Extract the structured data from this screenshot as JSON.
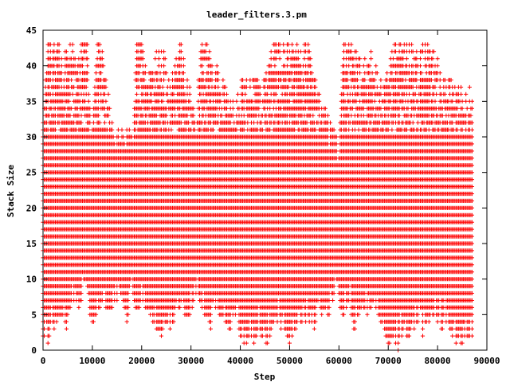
{
  "chart_data": {
    "type": "scatter",
    "title": "leader_filters.3.pm",
    "xlabel": "Step",
    "ylabel": "Stack Size",
    "xlim": [
      0,
      90000
    ],
    "ylim": [
      0,
      45
    ],
    "x_ticks": [
      0,
      10000,
      20000,
      30000,
      40000,
      50000,
      60000,
      70000,
      80000,
      90000
    ],
    "y_ticks": [
      0,
      5,
      10,
      15,
      20,
      25,
      30,
      35,
      40,
      45
    ],
    "grid": false,
    "legend": "none",
    "marker": "+",
    "color": "#ff0000",
    "x_extent": [
      0,
      87000
    ],
    "series": [
      {
        "min_envelope": [
          [
            0,
            2
          ],
          [
            1000,
            1
          ],
          [
            2000,
            3
          ],
          [
            4000,
            5
          ],
          [
            5000,
            2
          ],
          [
            6000,
            8
          ],
          [
            7000,
            5
          ],
          [
            8000,
            8
          ],
          [
            9000,
            6
          ],
          [
            10000,
            4
          ],
          [
            11000,
            5
          ],
          [
            12000,
            7
          ],
          [
            13000,
            6
          ],
          [
            14000,
            6
          ],
          [
            15000,
            6
          ],
          [
            16000,
            8
          ],
          [
            17000,
            4
          ],
          [
            18000,
            8
          ],
          [
            19000,
            5
          ],
          [
            20000,
            7
          ],
          [
            21000,
            6
          ],
          [
            22000,
            4
          ],
          [
            23000,
            3
          ],
          [
            24000,
            2
          ],
          [
            25000,
            4
          ],
          [
            26000,
            3
          ],
          [
            27000,
            5
          ],
          [
            28000,
            6
          ],
          [
            29000,
            4
          ],
          [
            30000,
            5
          ],
          [
            31000,
            8
          ],
          [
            32000,
            6
          ],
          [
            33000,
            5
          ],
          [
            34000,
            3
          ],
          [
            35000,
            6
          ],
          [
            36000,
            5
          ],
          [
            37000,
            4
          ],
          [
            38000,
            3
          ],
          [
            39000,
            5
          ],
          [
            40000,
            2
          ],
          [
            41000,
            1
          ],
          [
            42000,
            2
          ],
          [
            43000,
            1
          ],
          [
            44000,
            3
          ],
          [
            45000,
            0
          ],
          [
            46000,
            2
          ],
          [
            47000,
            5
          ],
          [
            48000,
            3
          ],
          [
            49000,
            2
          ],
          [
            50000,
            1
          ],
          [
            51000,
            3
          ],
          [
            52000,
            4
          ],
          [
            53000,
            3
          ],
          [
            54000,
            4
          ],
          [
            55000,
            3
          ],
          [
            56000,
            6
          ],
          [
            57000,
            4
          ],
          [
            58000,
            5
          ],
          [
            59000,
            8
          ],
          [
            60000,
            6
          ],
          [
            61000,
            5
          ],
          [
            62000,
            7
          ],
          [
            63000,
            3
          ],
          [
            64000,
            4
          ],
          [
            65000,
            6
          ],
          [
            66000,
            5
          ],
          [
            67000,
            7
          ],
          [
            68000,
            5
          ],
          [
            69000,
            3
          ],
          [
            70000,
            1
          ],
          [
            71000,
            2
          ],
          [
            72000,
            0
          ],
          [
            73000,
            3
          ],
          [
            74000,
            2
          ],
          [
            75000,
            3
          ],
          [
            76000,
            4
          ],
          [
            77000,
            2
          ],
          [
            78000,
            4
          ],
          [
            79000,
            5
          ],
          [
            80000,
            4
          ],
          [
            81000,
            3
          ],
          [
            82000,
            4
          ],
          [
            83000,
            2
          ],
          [
            84000,
            0
          ],
          [
            85000,
            1
          ],
          [
            86000,
            2
          ],
          [
            87000,
            2
          ]
        ],
        "max_envelope": [
          [
            0,
            33
          ],
          [
            1000,
            43
          ],
          [
            2000,
            43
          ],
          [
            3000,
            43
          ],
          [
            4000,
            43
          ],
          [
            5000,
            43
          ],
          [
            6000,
            43
          ],
          [
            7000,
            43
          ],
          [
            8000,
            43
          ],
          [
            9000,
            43
          ],
          [
            10000,
            31
          ],
          [
            11000,
            43
          ],
          [
            12000,
            43
          ],
          [
            13000,
            37
          ],
          [
            14000,
            32
          ],
          [
            15000,
            31
          ],
          [
            16000,
            31
          ],
          [
            17000,
            31
          ],
          [
            18000,
            30
          ],
          [
            19000,
            43
          ],
          [
            20000,
            43
          ],
          [
            21000,
            39
          ],
          [
            22000,
            39
          ],
          [
            23000,
            42
          ],
          [
            24000,
            42
          ],
          [
            25000,
            41
          ],
          [
            26000,
            38
          ],
          [
            27000,
            43
          ],
          [
            28000,
            43
          ],
          [
            29000,
            38
          ],
          [
            30000,
            36
          ],
          [
            31000,
            32
          ],
          [
            32000,
            43
          ],
          [
            33000,
            43
          ],
          [
            34000,
            42
          ],
          [
            35000,
            40
          ],
          [
            36000,
            38
          ],
          [
            37000,
            37
          ],
          [
            38000,
            36
          ],
          [
            39000,
            34
          ],
          [
            40000,
            38
          ],
          [
            41000,
            38
          ],
          [
            42000,
            38
          ],
          [
            43000,
            38
          ],
          [
            44000,
            38
          ],
          [
            45000,
            38
          ],
          [
            46000,
            43
          ],
          [
            47000,
            43
          ],
          [
            48000,
            43
          ],
          [
            49000,
            43
          ],
          [
            50000,
            43
          ],
          [
            51000,
            43
          ],
          [
            52000,
            43
          ],
          [
            53000,
            43
          ],
          [
            54000,
            43
          ],
          [
            55000,
            38
          ],
          [
            56000,
            36
          ],
          [
            57000,
            34
          ],
          [
            58000,
            32
          ],
          [
            59000,
            31
          ],
          [
            60000,
            30
          ],
          [
            61000,
            43
          ],
          [
            62000,
            43
          ],
          [
            63000,
            42
          ],
          [
            64000,
            41
          ],
          [
            65000,
            40
          ],
          [
            66000,
            42
          ],
          [
            67000,
            41
          ],
          [
            68000,
            38
          ],
          [
            69000,
            37
          ],
          [
            70000,
            39
          ],
          [
            71000,
            43
          ],
          [
            72000,
            43
          ],
          [
            73000,
            43
          ],
          [
            74000,
            43
          ],
          [
            75000,
            43
          ],
          [
            76000,
            43
          ],
          [
            77000,
            43
          ],
          [
            78000,
            43
          ],
          [
            79000,
            42
          ],
          [
            80000,
            41
          ],
          [
            81000,
            38
          ],
          [
            82000,
            38
          ],
          [
            83000,
            38
          ],
          [
            84000,
            38
          ],
          [
            85000,
            37
          ],
          [
            86000,
            37
          ],
          [
            87000,
            37
          ]
        ]
      }
    ]
  }
}
